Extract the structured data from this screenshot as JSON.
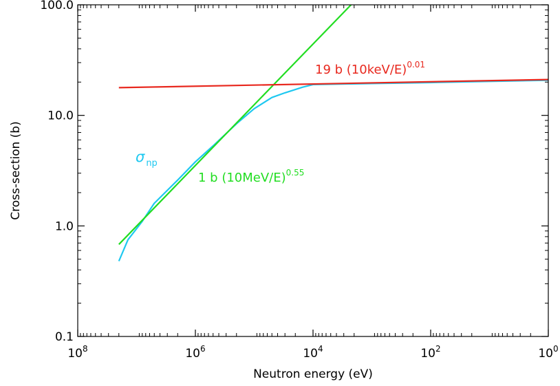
{
  "chart_data": {
    "type": "line",
    "xlabel": "Neutron energy (eV)",
    "ylabel": "Cross-section (b)",
    "x_scale": "log",
    "x_reversed": true,
    "y_scale": "log",
    "xlim": [
      100000000,
      1
    ],
    "ylim": [
      0.1,
      100
    ],
    "grid": false,
    "x_ticks": [
      {
        "value": 100000000,
        "base": "10",
        "exp": "8"
      },
      {
        "value": 1000000,
        "base": "10",
        "exp": "6"
      },
      {
        "value": 10000,
        "base": "10",
        "exp": "4"
      },
      {
        "value": 100,
        "base": "10",
        "exp": "2"
      },
      {
        "value": 1,
        "base": "10",
        "exp": "0"
      }
    ],
    "y_ticks": [
      {
        "value": 0.1,
        "label": "0.1"
      },
      {
        "value": 1,
        "label": "1.0"
      },
      {
        "value": 10,
        "label": "10.0"
      },
      {
        "value": 100,
        "label": "100.0"
      }
    ],
    "series": [
      {
        "color": "#1ec8f0",
        "x": [
          20000000,
          14000000,
          8000000,
          5000000,
          2000000,
          1000000,
          500000,
          200000,
          100000,
          50000,
          30000,
          15000,
          10000,
          1000,
          100,
          10,
          1
        ],
        "y": [
          0.48,
          0.75,
          1.1,
          1.6,
          2.6,
          3.8,
          5.3,
          8.4,
          11.5,
          14.5,
          16.0,
          18.0,
          19.0,
          19.4,
          19.8,
          20.3,
          20.8
        ]
      },
      {
        "color": "#22dd22",
        "x": [
          20000000,
          2000,
          100
        ],
        "y": [
          0.68,
          107,
          548
        ]
      },
      {
        "color": "#e8281e",
        "x": [
          20000000,
          1
        ],
        "y": [
          17.8,
          21.1
        ]
      }
    ],
    "annotations": [
      {
        "id": "snp",
        "color": "#1ec8f0",
        "base": "σ",
        "sub": "np"
      },
      {
        "id": "green",
        "color": "#22dd22",
        "text": "1 b (10MeV/E)",
        "sup": "0.55"
      },
      {
        "id": "red",
        "color": "#e8281e",
        "text": "19 b (10keV/E)",
        "sup": "0.01"
      }
    ]
  }
}
